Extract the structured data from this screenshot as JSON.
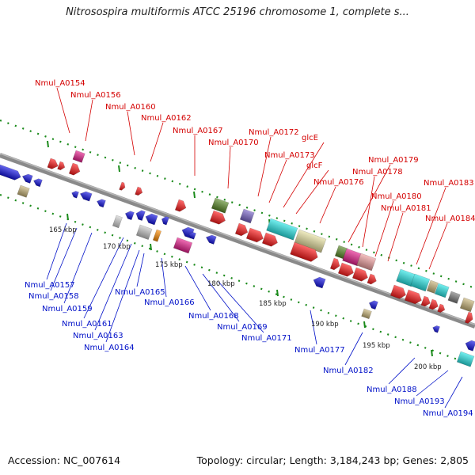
{
  "title": "Nitrosospira multiformis ATCC 25196 chromosome 1, complete s...",
  "footer": {
    "accession": "Accession: NC_007614",
    "summary": "Topology: circular; Length: 3,184,243 bp; Genes: 2,805"
  },
  "colors": {
    "backbone": "#8a8a8a",
    "forward_label": "#d40000",
    "reverse_label": "#0010c8",
    "tick": "#1a8a1a"
  },
  "ticks": [
    "165 kbp",
    "170 kbp",
    "175 kbp",
    "180 kbp",
    "185 kbp",
    "190 kbp",
    "195 kbp",
    "200 kbp"
  ],
  "forward_labels": [
    "Nmul_A0154",
    "Nmul_A0156",
    "Nmul_A0160",
    "Nmul_A0162",
    "Nmul_A0167",
    "Nmul_A0170",
    "Nmul_A0172",
    "Nmul_A0173",
    "glcE",
    "glcF",
    "Nmul_A0176",
    "Nmul_A0179",
    "Nmul_A0178",
    "Nmul_A0180",
    "Nmul_A0181",
    "Nmul_A0183",
    "Nmul_A0184"
  ],
  "reverse_labels": [
    "Nmul_A0157",
    "Nmul_A0158",
    "Nmul_A0159",
    "Nmul_A0161",
    "Nmul_A0163",
    "Nmul_A0164",
    "Nmul_A0165",
    "Nmul_A0166",
    "Nmul_A0168",
    "Nmul_A0169",
    "Nmul_A0171",
    "Nmul_A0177",
    "Nmul_A0182",
    "Nmul_A0188",
    "Nmul_A0193",
    "Nmul_A0194"
  ]
}
